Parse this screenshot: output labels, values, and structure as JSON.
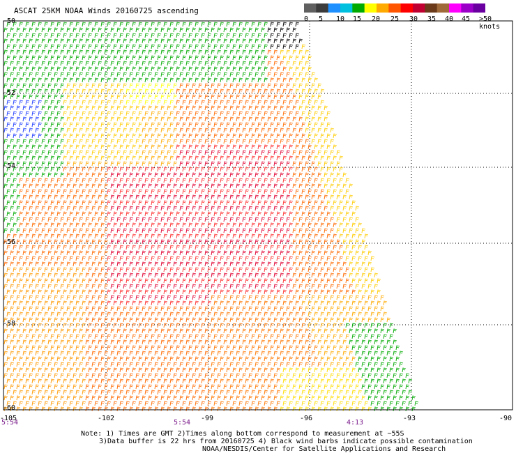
{
  "title": "ASCAT 25KM NOAA Winds 20160725 ascending",
  "legend": {
    "unit_label": ">50 knots",
    "ticks": [
      "0",
      "5",
      "10",
      "15",
      "20",
      "25",
      "30",
      "35",
      "40",
      "45"
    ],
    "colors": [
      "#606060",
      "#3c3c3c",
      "#1e90ff",
      "#00c0e0",
      "#00aa00",
      "#ffff00",
      "#ffaa00",
      "#ff5500",
      "#ff0000",
      "#c00030",
      "#6a3a1a",
      "#a06a3a",
      "#ff00ff",
      "#9a00c8",
      "#6a00a0"
    ]
  },
  "lat_labels": [
    "-50",
    "-52",
    "-54",
    "-56",
    "-58",
    "-60"
  ],
  "lon_labels": [
    "-105",
    "-102",
    "-99",
    "-96",
    "-93",
    "-90"
  ],
  "time_labels": [
    "5:54",
    "5:54",
    "4:13"
  ],
  "notes": [
    "Note: 1) Times are GMT 2)Times along bottom correspond to measurement at ~55S",
    "3)Data buffer is 22 hrs from 20160725 4) Black wind barbs indicate possible contamination",
    "NOAA/NESDIS/Center for Satellite Applications and Research"
  ]
}
